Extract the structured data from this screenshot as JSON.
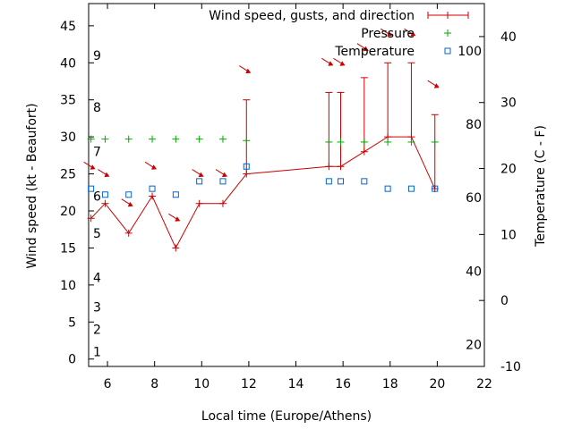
{
  "chart_data": {
    "type": "line",
    "xlabel": "Local time (Europe/Athens)",
    "ylabel": "Wind speed (kt - Beaufort)",
    "y2label": "Temperature (C - F)",
    "xlim": [
      5.2,
      22
    ],
    "ylim": [
      -1,
      48
    ],
    "y2lim": [
      -10,
      45
    ],
    "x_ticks": [
      6,
      8,
      10,
      12,
      14,
      16,
      18,
      20,
      22
    ],
    "y_ticks": [
      0,
      5,
      10,
      15,
      20,
      25,
      30,
      35,
      40,
      45
    ],
    "y2_celsius_ticks": [
      -10,
      0,
      10,
      20,
      30,
      40
    ],
    "beaufort_labels": [
      {
        "label": "1",
        "kt": 1
      },
      {
        "label": "2",
        "kt": 4
      },
      {
        "label": "3",
        "kt": 7
      },
      {
        "label": "4",
        "kt": 11
      },
      {
        "label": "5",
        "kt": 17
      },
      {
        "label": "6",
        "kt": 22
      },
      {
        "label": "7",
        "kt": 28
      },
      {
        "label": "8",
        "kt": 34
      },
      {
        "label": "9",
        "kt": 41
      }
    ],
    "fahrenheit_labels": [
      {
        "label": "20",
        "c": -6.7
      },
      {
        "label": "40",
        "c": 4.4
      },
      {
        "label": "60",
        "c": 15.6
      },
      {
        "label": "80",
        "c": 26.7
      },
      {
        "label": "100",
        "c": 37.8
      }
    ],
    "legend_position": "top-right",
    "series": [
      {
        "name": "Wind speed, gusts, and direction",
        "color": "#cc0000",
        "x": [
          5.3,
          5.9,
          6.9,
          7.9,
          8.9,
          9.9,
          10.9,
          11.9,
          15.4,
          15.9,
          16.9,
          17.9,
          18.9,
          19.9
        ],
        "values": [
          19,
          21,
          17,
          22,
          15,
          21,
          21,
          25,
          26,
          26,
          28,
          30,
          30,
          23
        ],
        "gusts": [
          null,
          null,
          null,
          null,
          null,
          null,
          null,
          35,
          36,
          36,
          38,
          40,
          40,
          33
        ],
        "direction_arrows_kt": [
          26,
          25,
          21,
          26,
          19,
          25,
          25,
          39,
          40,
          40,
          42,
          44,
          44,
          37
        ]
      },
      {
        "name": "Pressure",
        "color": "#00aa00",
        "x": [
          5.3,
          5.9,
          6.9,
          7.9,
          8.9,
          9.9,
          10.9,
          11.9,
          15.4,
          15.9,
          16.9,
          17.9,
          18.9,
          19.9
        ],
        "values": [
          29.7,
          29.7,
          29.7,
          29.7,
          29.7,
          29.7,
          29.7,
          29.5,
          29.3,
          29.3,
          29.3,
          29.3,
          29.3,
          29.3
        ]
      },
      {
        "name": "Temperature",
        "color": "#0066cc",
        "x": [
          5.3,
          5.9,
          6.9,
          7.9,
          8.9,
          9.9,
          10.9,
          11.9,
          15.4,
          15.9,
          16.9,
          17.9,
          18.9,
          19.9
        ],
        "values": [
          23,
          22.2,
          22.2,
          23,
          22.2,
          24,
          24,
          26,
          24,
          24,
          24,
          23,
          23,
          23
        ]
      }
    ]
  }
}
